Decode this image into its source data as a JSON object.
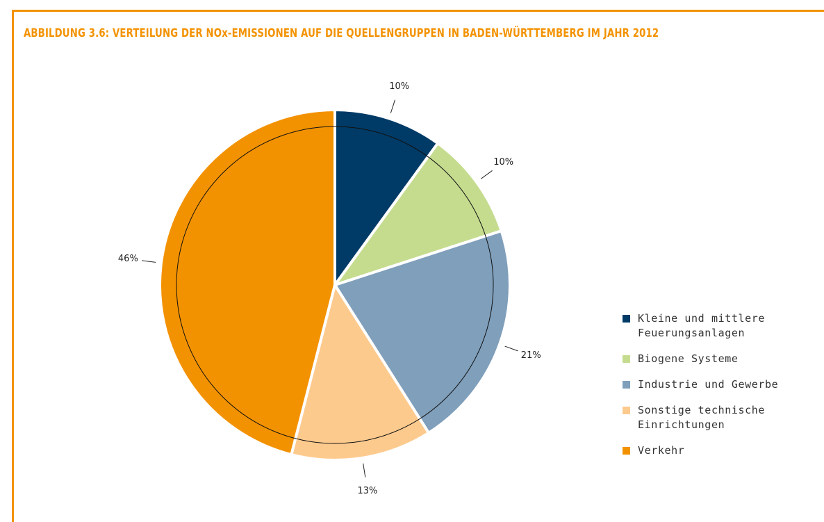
{
  "chart_data": {
    "type": "pie",
    "title": "ABBILDUNG 3.6: VERTEILUNG DER NOx-EMISSIONEN AUF DIE QUELLENGRUPPEN IN BADEN-WÜRTTEMBERG IM JAHR 2012",
    "categories": [
      "Kleine und mittlere Feuerungsanlagen",
      "Biogene Systeme",
      "Industrie und Gewerbe",
      "Sonstige technische Einrichtungen",
      "Verkehr"
    ],
    "values": [
      10,
      10,
      21,
      13,
      46
    ],
    "value_labels": [
      "10%",
      "10%",
      "21%",
      "13%",
      "46%"
    ],
    "colors": [
      "#003a66",
      "#c5dc8f",
      "#7f9fbb",
      "#fdca8e",
      "#f39200"
    ],
    "legend": "right"
  }
}
